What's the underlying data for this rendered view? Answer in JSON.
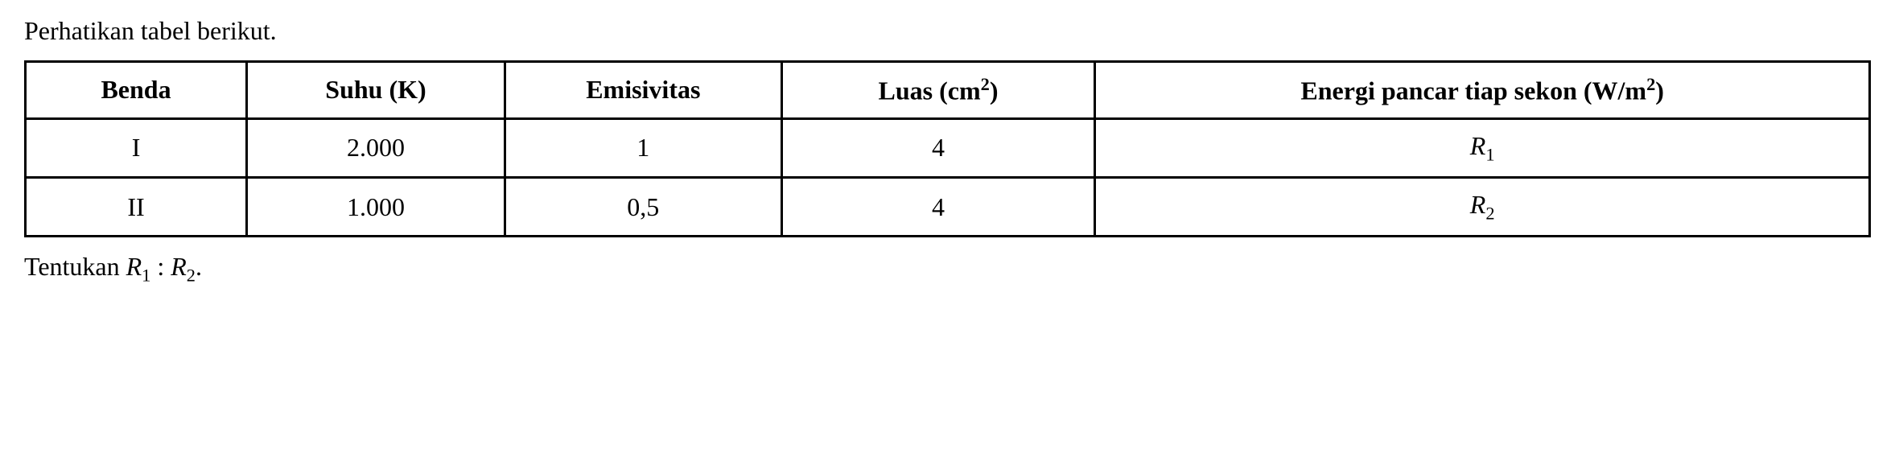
{
  "intro": "Perhatikan tabel berikut.",
  "table": {
    "columns": [
      {
        "label": "Benda",
        "class": "col-benda"
      },
      {
        "label": "Suhu (K)",
        "class": "col-suhu"
      },
      {
        "label": "Emisivitas",
        "class": "col-emis"
      },
      {
        "label_html": "Luas (cm<sup>2</sup>)",
        "class": "col-luas"
      },
      {
        "label_html": "Energi pancar tiap sekon (W/m<sup>2</sup>)",
        "class": "col-energi"
      }
    ],
    "rows": [
      {
        "benda": "I",
        "suhu": "2.000",
        "emisivitas": "1",
        "luas": "4",
        "energi_html": "<span class=\"italic\">R</span><sub>1</sub>"
      },
      {
        "benda": "II",
        "suhu": "1.000",
        "emisivitas": "0,5",
        "luas": "4",
        "energi_html": "<span class=\"italic\">R</span><sub>2</sub>"
      }
    ],
    "border_color": "#000000",
    "border_width": 3,
    "font_family": "Times New Roman",
    "header_fontsize": 32,
    "cell_fontsize": 32,
    "background_color": "#ffffff"
  },
  "closing_html": "Tentukan <span class=\"italic\">R</span><sub>1</sub> : <span class=\"italic\">R</span><sub>2</sub>."
}
